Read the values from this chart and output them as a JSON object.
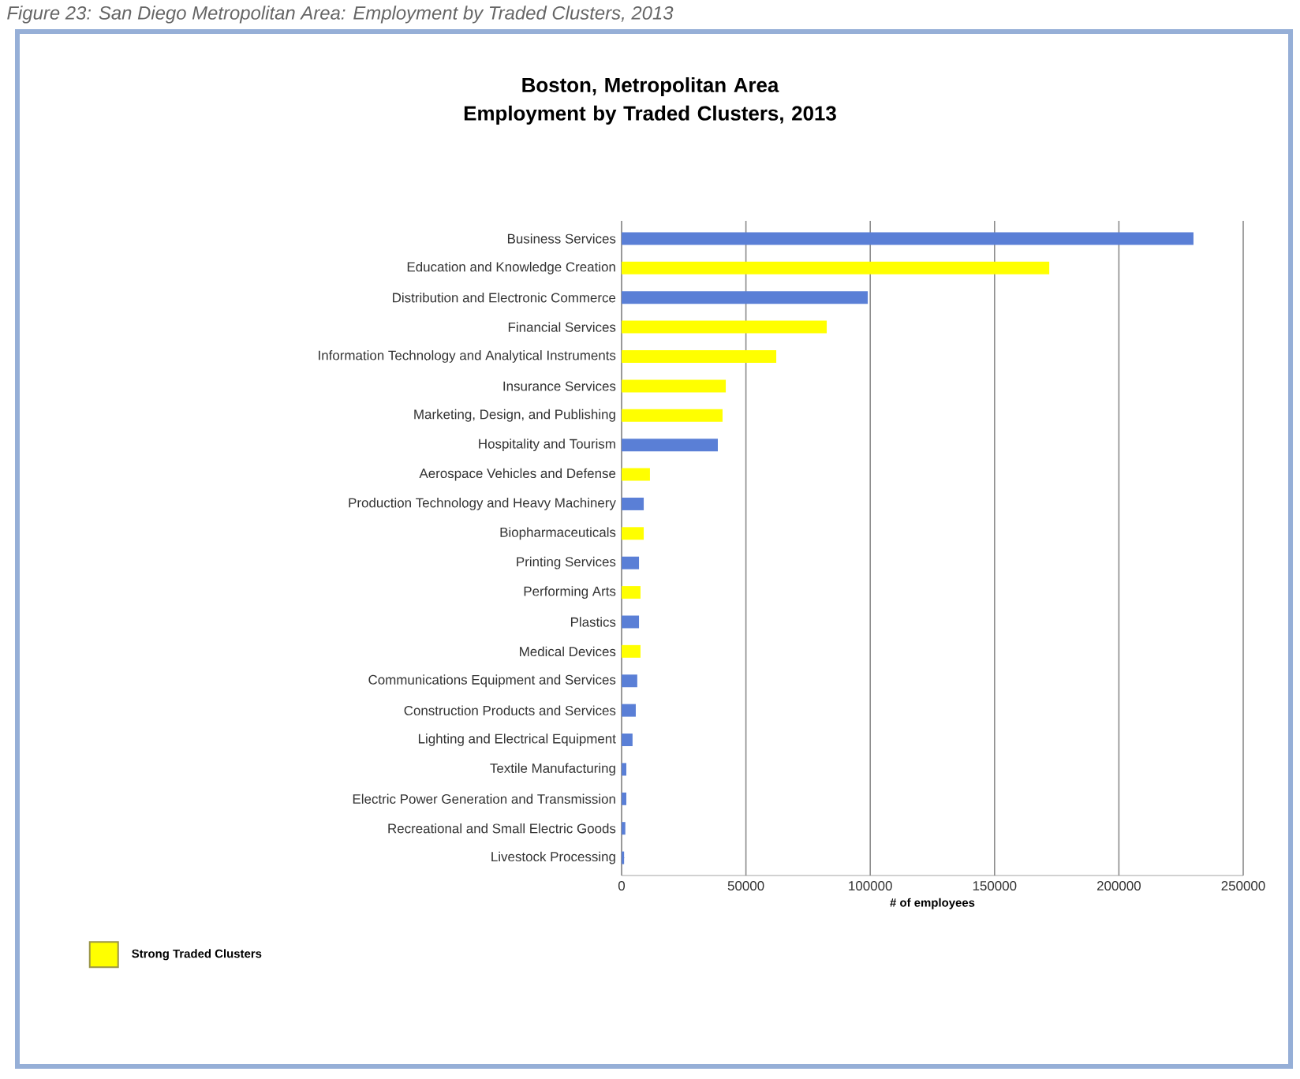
{
  "chart_data": {
    "type": "bar",
    "orientation": "horizontal",
    "title": "Boston, Metropolitan Area\nEmployment by Traded Clusters, 2013",
    "xlabel": "# of employees",
    "annotations": [
      "Figure 23: San Diego Metropolitan Area: Employment by Traded Clusters, 2013"
    ],
    "categories": [
      "Business Services",
      "Education and Knowledge Creation",
      "Distribution and Electronic Commerce",
      "Financial Services",
      "Information Technology and Analytical Instruments",
      "Insurance Services",
      "Marketing, Design, and Publishing",
      "Hospitality and Tourism",
      "Aerospace Vehicles and Defense",
      "Production Technology and Heavy Machinery",
      "Biopharmaceuticals",
      "Printing Services",
      "Performing Arts",
      "Plastics",
      "Medical Devices",
      "Communications Equipment and Services",
      "Construction Products and Services",
      "Lighting and Electrical Equipment",
      "Textile Manufacturing",
      "Electric Power Generation and Transmission",
      "Recreational and Small Electric Goods",
      "Livestock Processing"
    ],
    "series": [
      {
        "color": "#5a7fd6",
        "values": [
          230000,
          null,
          99000,
          null,
          null,
          null,
          null,
          38700,
          null,
          8900,
          null,
          7000,
          null,
          7000,
          null,
          6300,
          5700,
          4400,
          1900,
          1900,
          1500,
          1000
        ]
      },
      {
        "name": "Strong Traded Clusters",
        "color": "#ffff00",
        "values": [
          null,
          172000,
          null,
          82500,
          62200,
          41900,
          40600,
          null,
          11400,
          null,
          8900,
          null,
          7600,
          null,
          7600,
          null,
          null,
          null,
          null,
          null,
          null,
          null
        ]
      }
    ],
    "xlim": [
      0,
      250000
    ],
    "xticks": [
      0,
      50000,
      100000,
      150000,
      200000,
      250000
    ],
    "grid": "x",
    "legend": "bottom left"
  }
}
